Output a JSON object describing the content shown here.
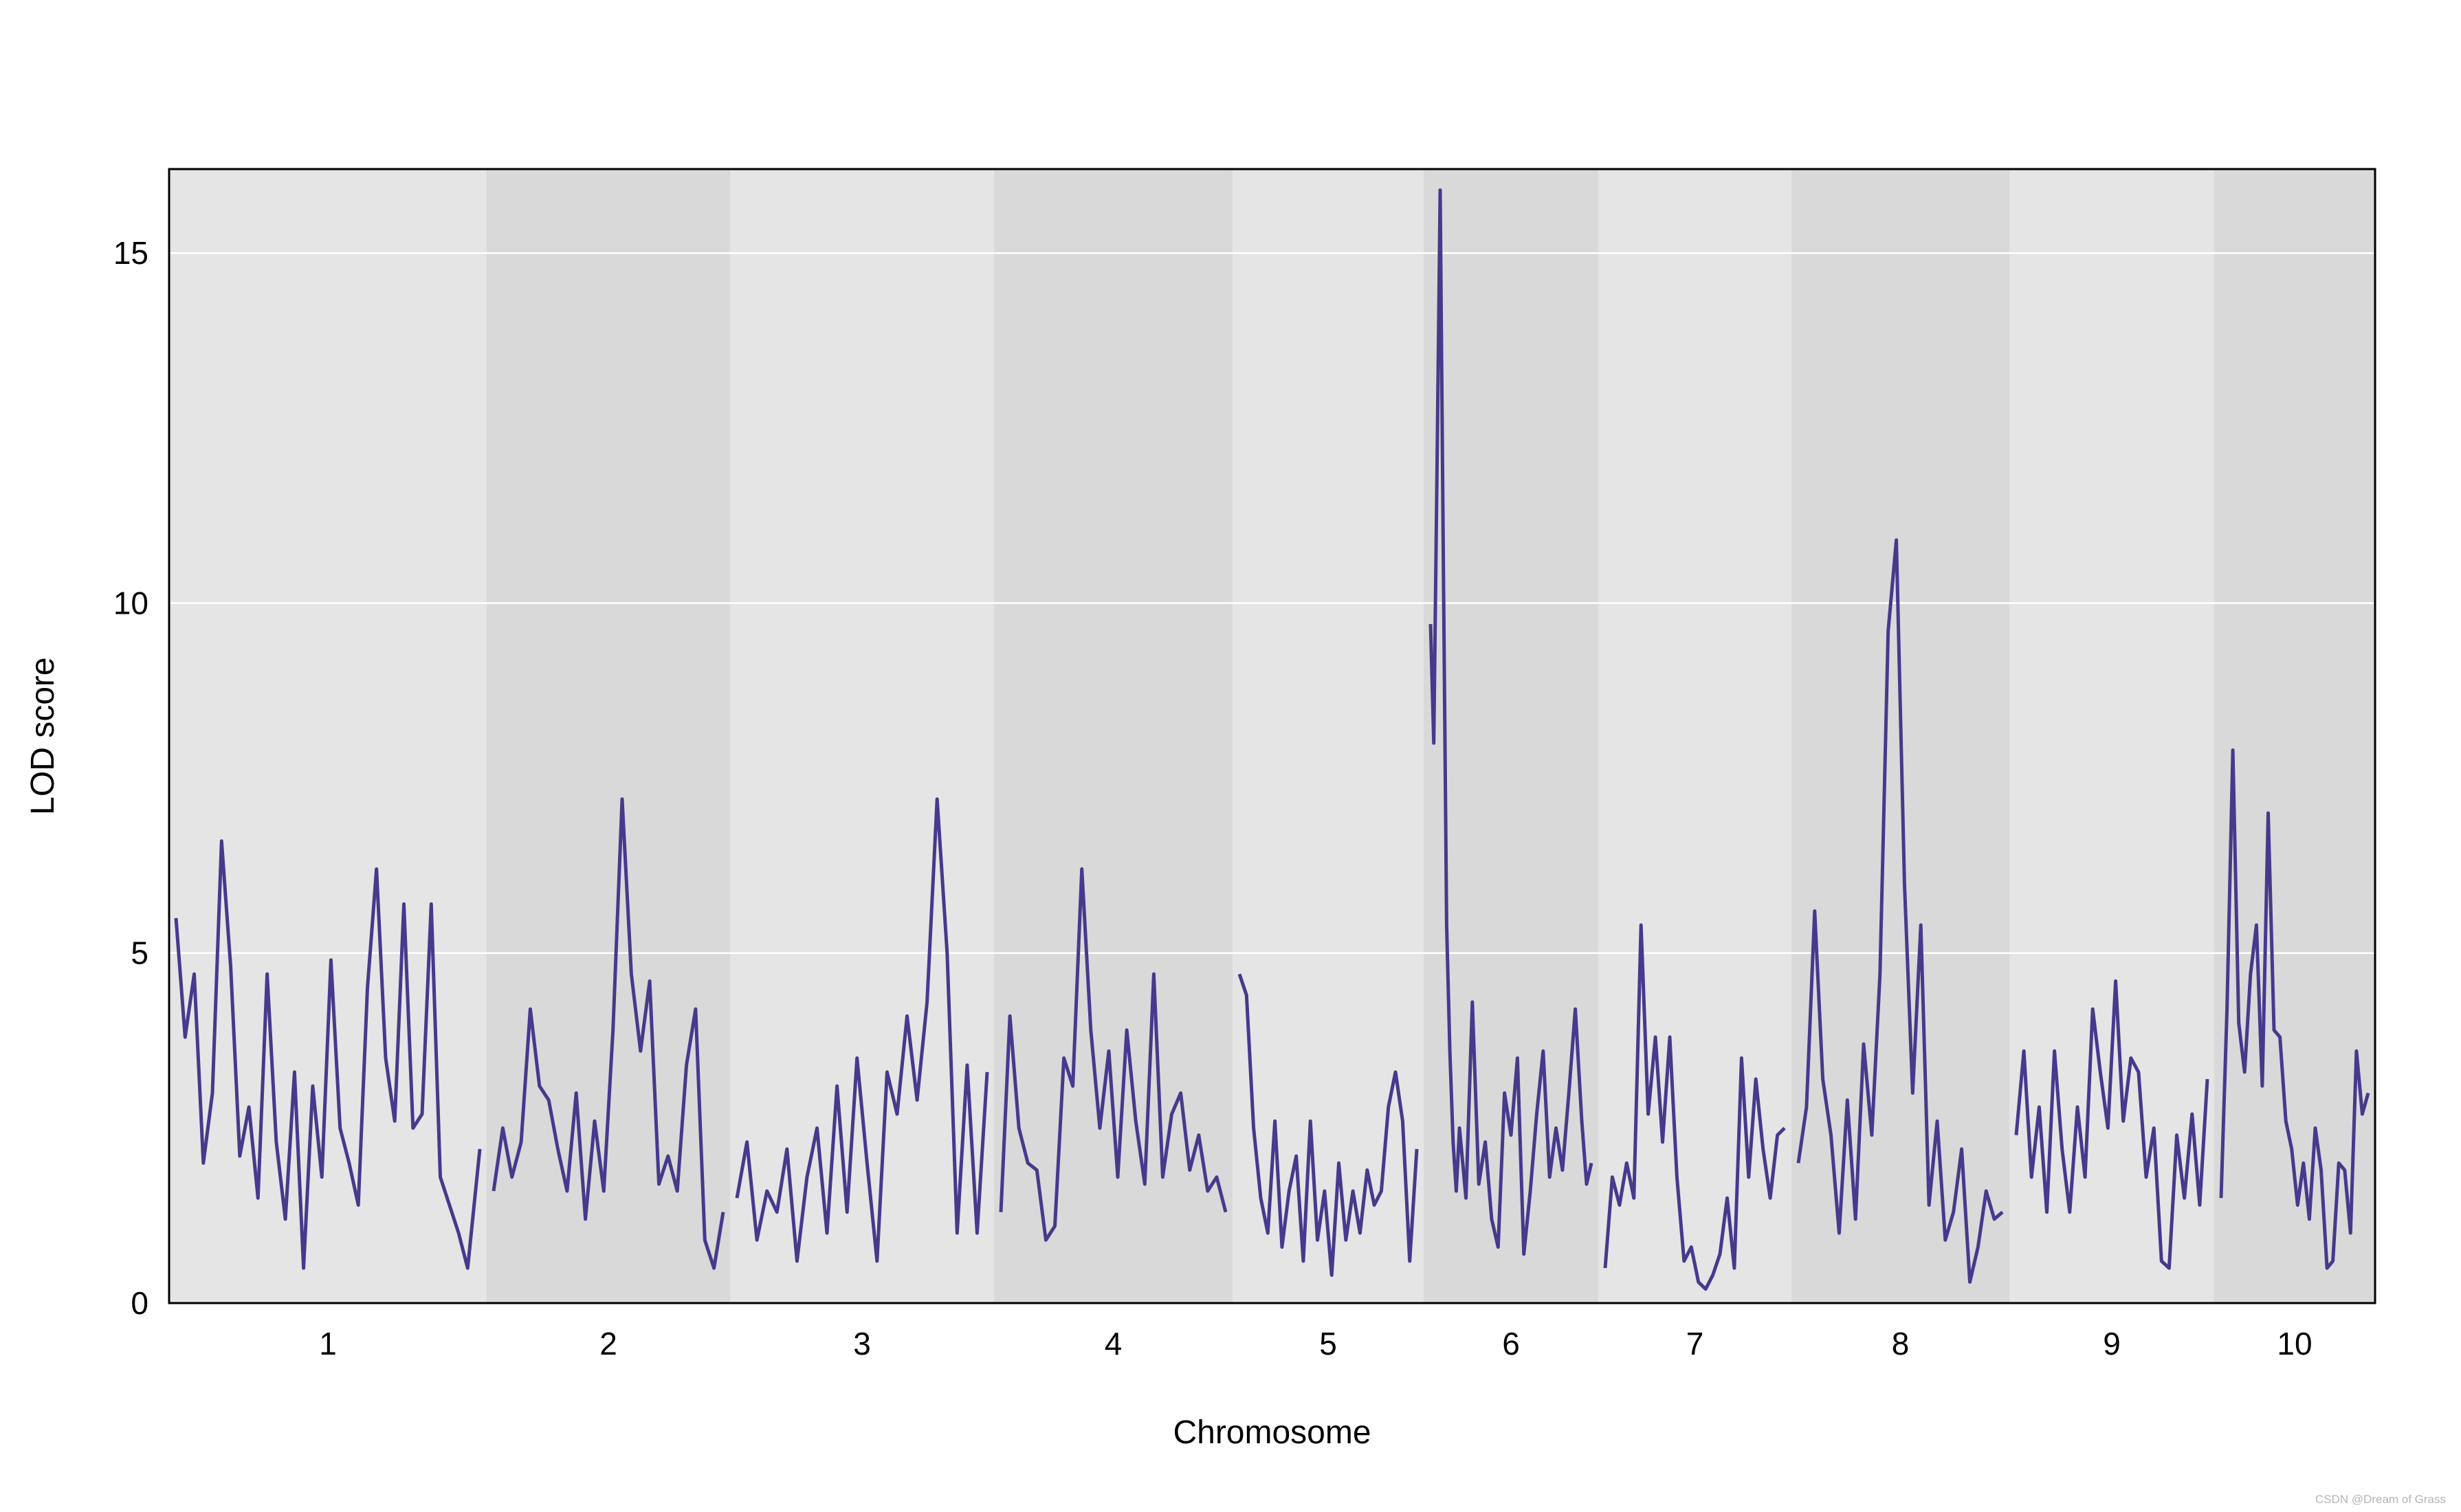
{
  "chart_data": {
    "type": "line",
    "xlabel": "Chromosome",
    "ylabel": "LOD score",
    "ylim": [
      0,
      16.2
    ],
    "yticks": [
      0,
      5,
      10,
      15
    ],
    "grid": true,
    "line_color": "#453a8c",
    "band_colors": [
      "#e5e5e5",
      "#d9d9d9"
    ],
    "series": [
      {
        "chromosomes": [
          {
            "label": "1",
            "x": [
              0,
              0.03,
              0.06,
              0.09,
              0.12,
              0.15,
              0.18,
              0.21,
              0.24,
              0.27,
              0.3,
              0.33,
              0.36,
              0.39,
              0.42,
              0.45,
              0.48,
              0.51,
              0.54,
              0.57,
              0.6,
              0.63,
              0.66,
              0.69,
              0.72,
              0.75,
              0.78,
              0.81,
              0.84,
              0.87,
              0.9,
              0.93,
              0.96,
              1
            ],
            "y": [
              5.5,
              3.8,
              4.7,
              2.0,
              3.0,
              6.6,
              4.8,
              2.1,
              2.8,
              1.5,
              4.7,
              2.3,
              1.2,
              3.3,
              0.5,
              3.1,
              1.8,
              4.9,
              2.5,
              2.0,
              1.4,
              4.5,
              6.2,
              3.5,
              2.6,
              5.7,
              2.5,
              2.7,
              5.7,
              1.8,
              1.4,
              1.0,
              0.5,
              2.2
            ]
          },
          {
            "label": "2",
            "x": [
              0,
              0.04,
              0.08,
              0.12,
              0.16,
              0.2,
              0.24,
              0.28,
              0.32,
              0.36,
              0.4,
              0.44,
              0.48,
              0.52,
              0.56,
              0.6,
              0.64,
              0.68,
              0.72,
              0.76,
              0.8,
              0.84,
              0.88,
              0.92,
              0.96,
              1
            ],
            "y": [
              1.6,
              2.5,
              1.8,
              2.3,
              4.2,
              3.1,
              2.9,
              2.2,
              1.6,
              3.0,
              1.2,
              2.6,
              1.6,
              3.9,
              7.2,
              4.7,
              3.6,
              4.6,
              1.7,
              2.1,
              1.6,
              3.4,
              4.2,
              0.9,
              0.5,
              1.3
            ]
          },
          {
            "label": "3",
            "x": [
              0,
              0.04,
              0.08,
              0.12,
              0.16,
              0.2,
              0.24,
              0.28,
              0.32,
              0.36,
              0.4,
              0.44,
              0.48,
              0.52,
              0.56,
              0.6,
              0.64,
              0.68,
              0.72,
              0.76,
              0.8,
              0.84,
              0.88,
              0.92,
              0.96,
              1
            ],
            "y": [
              1.5,
              2.3,
              0.9,
              1.6,
              1.3,
              2.2,
              0.6,
              1.8,
              2.5,
              1.0,
              3.1,
              1.3,
              3.5,
              2.0,
              0.6,
              3.3,
              2.7,
              4.1,
              2.9,
              4.3,
              7.2,
              5.0,
              1.0,
              3.4,
              1.0,
              3.3
            ]
          },
          {
            "label": "4",
            "x": [
              0,
              0.04,
              0.08,
              0.12,
              0.16,
              0.2,
              0.24,
              0.28,
              0.32,
              0.36,
              0.4,
              0.44,
              0.48,
              0.52,
              0.56,
              0.6,
              0.64,
              0.68,
              0.72,
              0.76,
              0.8,
              0.84,
              0.88,
              0.92,
              0.96,
              1
            ],
            "y": [
              1.3,
              4.1,
              2.5,
              2.0,
              1.9,
              0.9,
              1.1,
              3.5,
              3.1,
              6.2,
              3.9,
              2.5,
              3.6,
              1.8,
              3.9,
              2.6,
              1.7,
              4.7,
              1.8,
              2.7,
              3.0,
              1.9,
              2.4,
              1.6,
              1.8,
              1.3
            ]
          },
          {
            "label": "5",
            "x": [
              0,
              0.04,
              0.08,
              0.12,
              0.16,
              0.2,
              0.24,
              0.28,
              0.32,
              0.36,
              0.4,
              0.44,
              0.48,
              0.52,
              0.56,
              0.6,
              0.64,
              0.68,
              0.72,
              0.76,
              0.8,
              0.84,
              0.88,
              0.92,
              0.96,
              1
            ],
            "y": [
              4.7,
              4.4,
              2.5,
              1.5,
              1.0,
              2.6,
              0.8,
              1.6,
              2.1,
              0.6,
              2.6,
              0.9,
              1.6,
              0.4,
              2.0,
              0.9,
              1.6,
              1.0,
              1.9,
              1.4,
              1.6,
              2.8,
              3.3,
              2.6,
              0.6,
              2.2
            ]
          },
          {
            "label": "6",
            "x": [
              0,
              0.02,
              0.04,
              0.06,
              0.08,
              0.1,
              0.12,
              0.14,
              0.16,
              0.18,
              0.22,
              0.26,
              0.3,
              0.34,
              0.38,
              0.42,
              0.46,
              0.5,
              0.54,
              0.58,
              0.62,
              0.66,
              0.7,
              0.74,
              0.78,
              0.82,
              0.86,
              0.9,
              0.94,
              0.97,
              1
            ],
            "y": [
              9.7,
              8.0,
              11.9,
              15.9,
              10.5,
              5.4,
              3.6,
              2.3,
              1.6,
              2.5,
              1.5,
              4.3,
              1.7,
              2.3,
              1.2,
              0.8,
              3.0,
              2.4,
              3.5,
              0.7,
              1.6,
              2.7,
              3.6,
              1.8,
              2.5,
              1.9,
              3.0,
              4.2,
              2.6,
              1.7,
              2.0
            ]
          },
          {
            "label": "7",
            "x": [
              0,
              0.04,
              0.08,
              0.12,
              0.16,
              0.2,
              0.24,
              0.28,
              0.32,
              0.36,
              0.4,
              0.44,
              0.48,
              0.52,
              0.56,
              0.6,
              0.64,
              0.68,
              0.72,
              0.76,
              0.8,
              0.84,
              0.88,
              0.92,
              0.96,
              1
            ],
            "y": [
              0.5,
              1.8,
              1.4,
              2.0,
              1.5,
              5.4,
              2.7,
              3.8,
              2.3,
              3.8,
              1.8,
              0.6,
              0.8,
              0.3,
              0.2,
              0.4,
              0.7,
              1.5,
              0.5,
              3.5,
              1.8,
              3.2,
              2.2,
              1.5,
              2.4,
              2.5
            ]
          },
          {
            "label": "8",
            "x": [
              0,
              0.04,
              0.08,
              0.12,
              0.16,
              0.2,
              0.24,
              0.28,
              0.32,
              0.36,
              0.4,
              0.44,
              0.48,
              0.52,
              0.56,
              0.6,
              0.64,
              0.68,
              0.72,
              0.76,
              0.8,
              0.84,
              0.88,
              0.92,
              0.96,
              1
            ],
            "y": [
              2.0,
              2.8,
              5.6,
              3.2,
              2.4,
              1.0,
              2.9,
              1.2,
              3.7,
              2.4,
              4.7,
              9.6,
              10.9,
              6.0,
              3.0,
              5.4,
              1.4,
              2.6,
              0.9,
              1.3,
              2.2,
              0.3,
              0.8,
              1.6,
              1.2,
              1.3
            ]
          },
          {
            "label": "9",
            "x": [
              0,
              0.04,
              0.08,
              0.12,
              0.16,
              0.2,
              0.24,
              0.28,
              0.32,
              0.36,
              0.4,
              0.44,
              0.48,
              0.52,
              0.56,
              0.6,
              0.64,
              0.68,
              0.72,
              0.76,
              0.8,
              0.84,
              0.88,
              0.92,
              0.96,
              1
            ],
            "y": [
              2.4,
              3.6,
              1.8,
              2.8,
              1.3,
              3.6,
              2.2,
              1.3,
              2.8,
              1.8,
              4.2,
              3.3,
              2.5,
              4.6,
              2.6,
              3.5,
              3.3,
              1.8,
              2.5,
              0.6,
              0.5,
              2.4,
              1.5,
              2.7,
              1.4,
              3.2
            ]
          },
          {
            "label": "10",
            "x": [
              0,
              0.04,
              0.08,
              0.12,
              0.16,
              0.2,
              0.24,
              0.28,
              0.32,
              0.36,
              0.4,
              0.44,
              0.48,
              0.52,
              0.56,
              0.6,
              0.64,
              0.68,
              0.72,
              0.76,
              0.8,
              0.84,
              0.88,
              0.92,
              0.96,
              1
            ],
            "y": [
              1.5,
              4.2,
              7.9,
              4.0,
              3.3,
              4.7,
              5.4,
              3.1,
              7.0,
              3.9,
              3.8,
              2.6,
              2.2,
              1.4,
              2.0,
              1.2,
              2.5,
              1.9,
              0.5,
              0.6,
              2.0,
              1.9,
              1.0,
              3.6,
              2.7,
              3.0
            ]
          }
        ]
      }
    ]
  },
  "watermark": "CSDN @Dream of Grass"
}
